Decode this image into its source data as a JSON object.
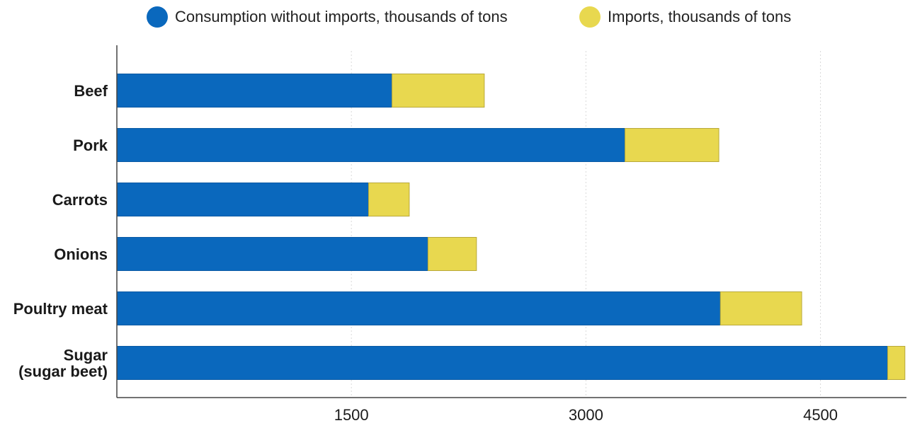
{
  "chart_data": {
    "type": "bar",
    "orientation": "horizontal",
    "stacked": true,
    "categories": [
      "Beef",
      "Pork",
      "Carrots",
      "Onions",
      "Poultry meat",
      "Sugar (sugar beet)"
    ],
    "category_lines": [
      [
        "Beef"
      ],
      [
        "Pork"
      ],
      [
        "Carrots"
      ],
      [
        "Onions"
      ],
      [
        "Poultry meat"
      ],
      [
        "Sugar",
        "(sugar beet)"
      ]
    ],
    "series": [
      {
        "name": "Consumption without imports, thousands of tons",
        "color": "#0a68bd",
        "values": [
          1760,
          3250,
          1610,
          1990,
          3860,
          4930
        ]
      },
      {
        "name": "Imports, thousands of tons",
        "color": "#e8d84f",
        "values": [
          590,
          600,
          260,
          310,
          520,
          110
        ]
      }
    ],
    "xlim": [
      0,
      5050
    ],
    "xticks": [
      1500,
      3000,
      4500
    ],
    "xtick_labels": [
      "1500",
      "3000",
      "4500"
    ],
    "grid": true,
    "legend_position": "top",
    "title": "",
    "xlabel": "",
    "ylabel": ""
  }
}
